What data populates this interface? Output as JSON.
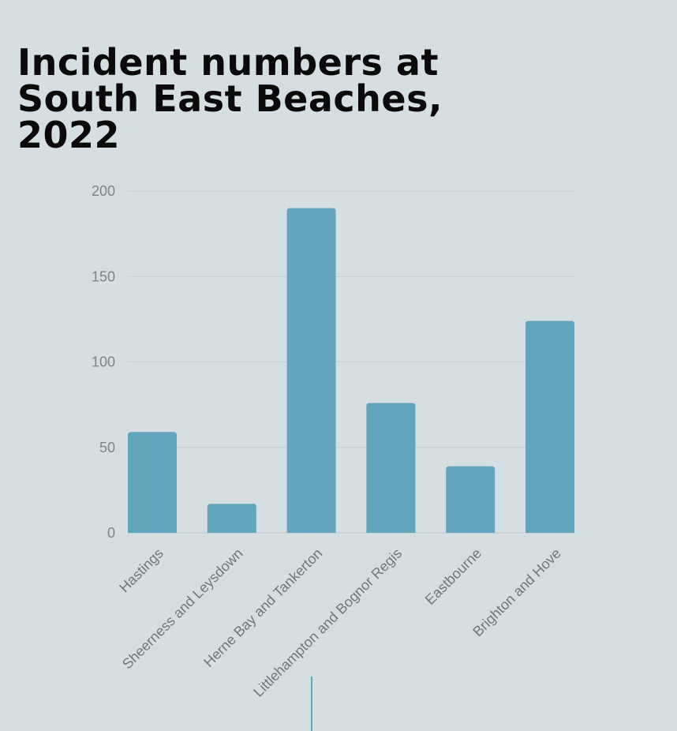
{
  "chart_data": {
    "type": "bar",
    "title": "Incident numbers at South East Beaches, 2022",
    "categories": [
      "Hastings",
      "Sheerness and Leysdown",
      "Herne Bay and Tankerton",
      "Littlehampton and Bognor Regis",
      "Eastbourne",
      "Brighton and Hove"
    ],
    "values": [
      59,
      17,
      190,
      76,
      39,
      124
    ],
    "ylim": [
      0,
      200
    ],
    "yticks": [
      0,
      50,
      100,
      150,
      200
    ],
    "xlabel": "",
    "ylabel": "",
    "grid": true,
    "legend": "none",
    "colors": {
      "bar": "#62a5bd",
      "background": "#d5dfe2",
      "title": "#0a0a0a"
    }
  }
}
